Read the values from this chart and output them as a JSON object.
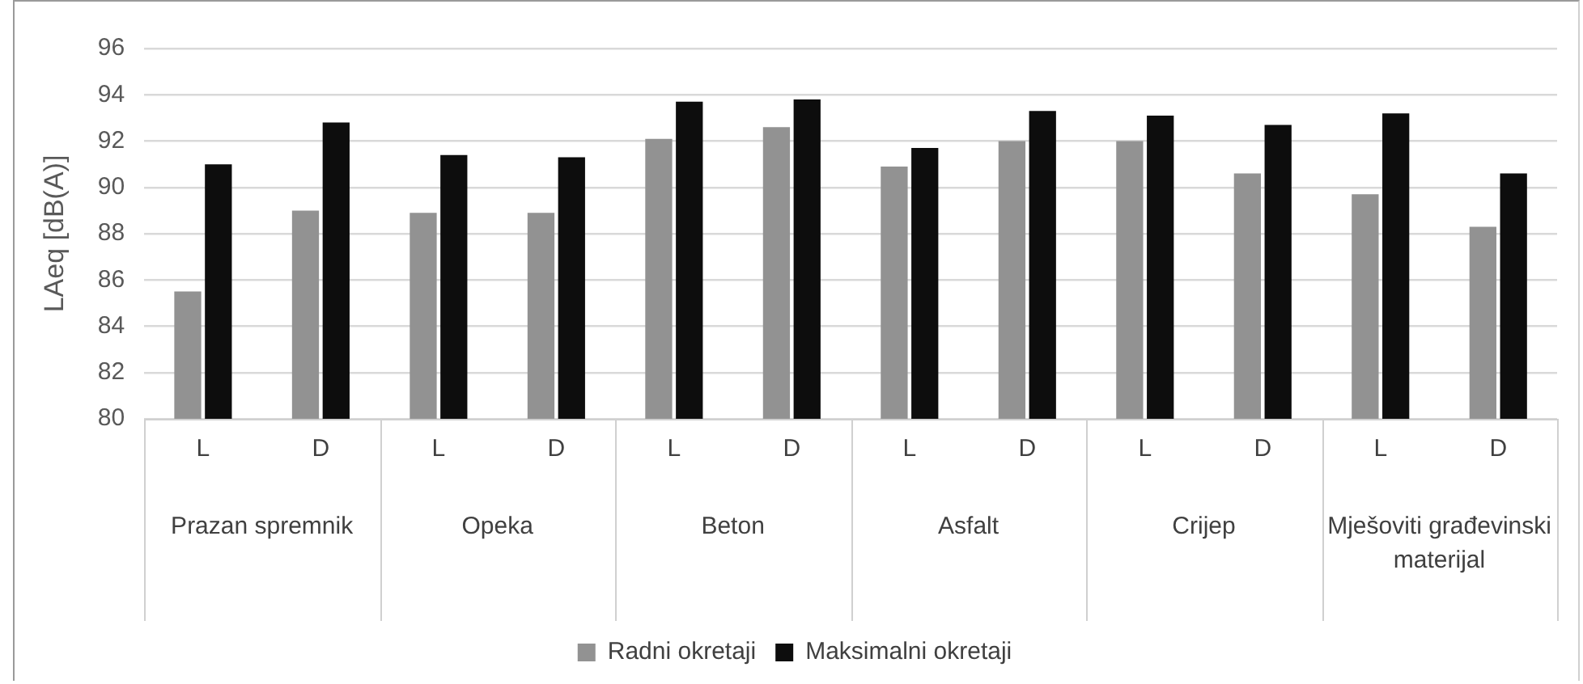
{
  "chart_data": {
    "type": "bar",
    "ylabel": "LAeq [dB(A)]",
    "categories": [
      "L",
      "D",
      "L",
      "D",
      "L",
      "D",
      "L",
      "D",
      "L",
      "D",
      "L",
      "D"
    ],
    "annotations": [
      "Prazan spremnik",
      "Opeka",
      "Beton",
      "Asfalt",
      "Crijep",
      "Mješoviti građevinski materijal"
    ],
    "series": [
      {
        "name": "Radni okretaji",
        "color": "#929292",
        "values": [
          85.5,
          89.0,
          88.9,
          88.9,
          92.1,
          92.6,
          90.9,
          92.0,
          92.0,
          90.6,
          89.7,
          88.3
        ]
      },
      {
        "name": "Maksimalni okretaji",
        "color": "#0d0d0d",
        "values": [
          91.0,
          92.8,
          91.4,
          91.3,
          93.7,
          93.8,
          91.7,
          93.3,
          93.1,
          92.7,
          93.2,
          90.6
        ]
      }
    ],
    "ylim": [
      80,
      96
    ],
    "yticks": [
      80,
      82,
      84,
      86,
      88,
      90,
      92,
      94,
      96
    ],
    "grid": "y",
    "legend": "bottom"
  }
}
